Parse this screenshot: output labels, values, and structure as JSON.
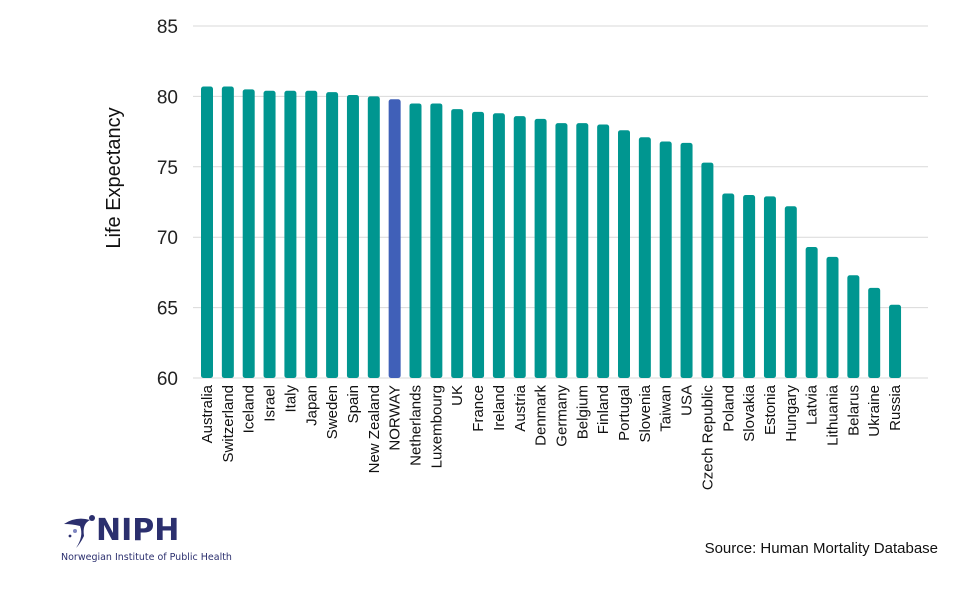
{
  "chart_data": {
    "type": "bar",
    "title": "",
    "xlabel": "",
    "ylabel": "Life Expectancy",
    "ylim": [
      60,
      85
    ],
    "yticks": [
      60,
      65,
      70,
      75,
      80,
      85
    ],
    "grid": true,
    "legend": "none",
    "categories": [
      "Australia",
      "Switzerland",
      "Iceland",
      "Israel",
      "Italy",
      "Japan",
      "Sweden",
      "Spain",
      "New Zealand",
      "NORWAY",
      "Netherlands",
      "Luxembourg",
      "UK",
      "France",
      "Ireland",
      "Austria",
      "Denmark",
      "Germany",
      "Belgium",
      "Finland",
      "Portugal",
      "Slovenia",
      "Taiwan",
      "USA",
      "Czech Republic",
      "Poland",
      "Slovakia",
      "Estonia",
      "Hungary",
      "Latvia",
      "Lithuania",
      "Belarus",
      "Ukraine",
      "Russia"
    ],
    "values": [
      80.7,
      80.7,
      80.5,
      80.4,
      80.4,
      80.4,
      80.3,
      80.1,
      80.0,
      79.8,
      79.5,
      79.5,
      79.1,
      78.9,
      78.8,
      78.6,
      78.4,
      78.1,
      78.1,
      78.0,
      77.6,
      77.1,
      76.8,
      76.7,
      75.3,
      73.1,
      73.0,
      72.9,
      72.2,
      69.3,
      68.6,
      67.3,
      66.4,
      65.2
    ],
    "highlight": "NORWAY",
    "colors": {
      "default": "#009690",
      "highlight": "#4060b8",
      "grid": "#d9d9d9"
    }
  },
  "footer": {
    "logo_name": "NIPH",
    "logo_subtitle": "Norwegian Institute of Public Health",
    "source": "Source: Human Mortality Database"
  }
}
